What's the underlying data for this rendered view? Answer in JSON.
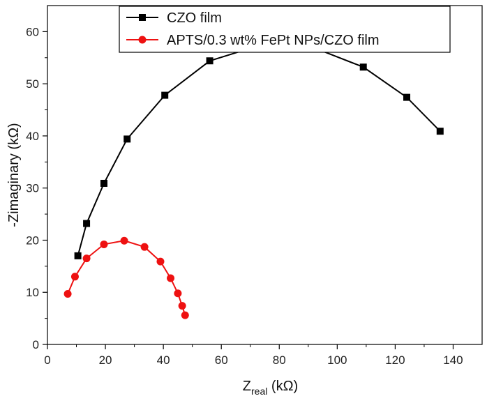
{
  "chart_data": {
    "type": "scatter",
    "title": "",
    "xlabel": {
      "main": "Z",
      "sub": "real",
      "unit": " (kΩ)"
    },
    "ylabel": "-Zimaginary (kΩ)",
    "xlim": [
      0,
      150
    ],
    "ylim": [
      0,
      65
    ],
    "xticks": [
      0,
      20,
      40,
      60,
      80,
      100,
      120,
      140
    ],
    "yticks": [
      0,
      10,
      20,
      30,
      40,
      50,
      60
    ],
    "grid": false,
    "legend_position": "top-center",
    "series": [
      {
        "name": "CZO film",
        "color": "#000000",
        "marker": "square",
        "x": [
          10.5,
          13.5,
          19.5,
          27.5,
          40.5,
          56,
          74,
          92,
          109,
          124,
          135.5
        ],
        "y": [
          17,
          23.2,
          30.9,
          39.4,
          47.8,
          54.4,
          57.5,
          56.9,
          53.2,
          47.4,
          40.9
        ]
      },
      {
        "name": "APTS/0.3 wt% FePt NPs/CZO film",
        "color": "#ee1111",
        "marker": "circle",
        "x": [
          7,
          9.5,
          13.5,
          19.5,
          26.5,
          33.5,
          39,
          42.5,
          45,
          46.5,
          47.5
        ],
        "y": [
          9.7,
          13,
          16.5,
          19.2,
          19.9,
          18.7,
          15.9,
          12.7,
          9.8,
          7.4,
          5.6
        ]
      }
    ]
  }
}
